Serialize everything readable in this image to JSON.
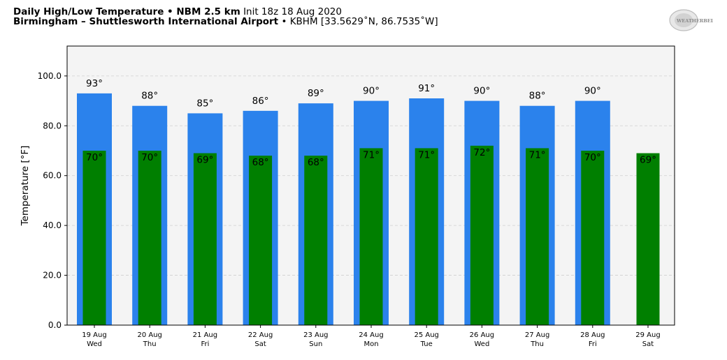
{
  "header": {
    "title_bold": "Daily High/Low Temperature • NBM 2.5 km",
    "title_init": "Init 18z 18 Aug 2020",
    "location_bold": "Birmingham – Shuttlesworth International Airport",
    "location_rest": "• KBHM [33.5629˚N, 86.7535˚W]"
  },
  "logo": {
    "icon": "weatherbell-logo",
    "text": "WEATHERBELL"
  },
  "chart_data": {
    "type": "bar",
    "ylabel": "Temperature [°F]",
    "ylim": [
      0,
      112
    ],
    "yticks": [
      "0.0",
      "20.0",
      "40.0",
      "60.0",
      "80.0",
      "100.0"
    ],
    "grid": true,
    "categories": [
      {
        "date": "19 Aug",
        "dow": "Wed"
      },
      {
        "date": "20 Aug",
        "dow": "Thu"
      },
      {
        "date": "21 Aug",
        "dow": "Fri"
      },
      {
        "date": "22 Aug",
        "dow": "Sat"
      },
      {
        "date": "23 Aug",
        "dow": "Sun"
      },
      {
        "date": "24 Aug",
        "dow": "Mon"
      },
      {
        "date": "25 Aug",
        "dow": "Tue"
      },
      {
        "date": "26 Aug",
        "dow": "Wed"
      },
      {
        "date": "27 Aug",
        "dow": "Thu"
      },
      {
        "date": "28 Aug",
        "dow": "Fri"
      },
      {
        "date": "29 Aug",
        "dow": "Sat"
      }
    ],
    "series": [
      {
        "key": "high",
        "color": "#2b82ec",
        "values": [
          93,
          88,
          85,
          86,
          89,
          90,
          91,
          90,
          88,
          90,
          null
        ],
        "labels": [
          "93°",
          "88°",
          "85°",
          "86°",
          "89°",
          "90°",
          "91°",
          "90°",
          "88°",
          "90°",
          ""
        ]
      },
      {
        "key": "low",
        "color": "#007f00",
        "values": [
          70,
          70,
          69,
          68,
          68,
          71,
          71,
          72,
          71,
          70,
          69
        ],
        "labels": [
          "70°",
          "70°",
          "69°",
          "68°",
          "68°",
          "71°",
          "71°",
          "72°",
          "71°",
          "70°",
          "69°"
        ]
      }
    ]
  }
}
